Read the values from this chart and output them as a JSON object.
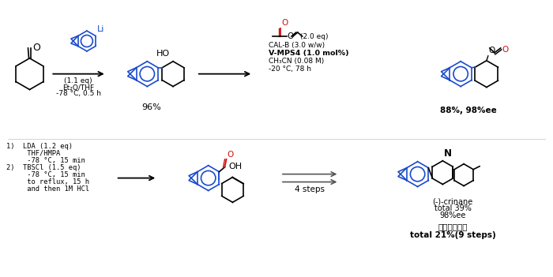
{
  "bg_color": "#ffffff",
  "black": "#000000",
  "blue": "#1a4bcc",
  "red": "#cc1111",
  "gray": "#555555",
  "top_reagent1": [
    "(1.1 eq)",
    "Et₂O/THF",
    "-78 °C, 0.5 h"
  ],
  "top_yield1": "96%",
  "top_reagent2_lines": [
    "CAL-B (3.0 w/w)",
    "CH₃CN (0.08 M)",
    "-20 °C, 78 h"
  ],
  "top_reagent2_bold": "V-MPS4 (1.0 mol%)",
  "top_reagent2_eq": "(2.0 eq)",
  "top_yield2": "88%, 98%ee",
  "bot_reagent_lines": [
    "1)  LDA (1.2 eq)",
    "     THF/HMPA",
    "     -78 °C, 15 min",
    "2)  TBSCl (1.5 eq)",
    "     -78 °C, 15 min",
    "     to reflux, 15 h",
    "     and then 1M HCl"
  ],
  "bot_steps": "4 steps",
  "bot_result": [
    "(-)-crinane",
    "total 39%",
    "98%ee"
  ],
  "bot_chinese": "外消旋体合成",
  "bot_total": "total 21%(9 steps)"
}
